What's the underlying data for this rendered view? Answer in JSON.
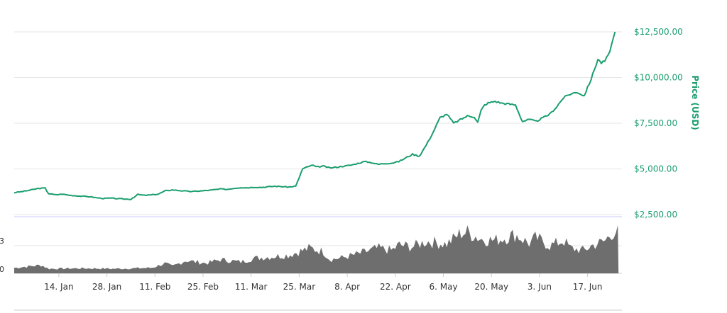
{
  "chart_data": {
    "type": "line",
    "ylabel": "Price (USD)",
    "y_axis_position": "right",
    "ylim": [
      2500,
      12500
    ],
    "y_ticks": [
      "$2,500.00",
      "$5,000.00",
      "$7,500.00",
      "$10,000.00",
      "$12,500.00"
    ],
    "y_tick_values": [
      2500,
      5000,
      7500,
      10000,
      12500
    ],
    "x_ticks": [
      "14. Jan",
      "28. Jan",
      "11. Feb",
      "25. Feb",
      "11. Mar",
      "25. Mar",
      "8. Apr",
      "22. Apr",
      "6. May",
      "20. May",
      "3. Jun",
      "17. Jun"
    ],
    "x_tick_days": [
      13,
      27,
      41,
      55,
      69,
      83,
      97,
      111,
      125,
      139,
      153,
      167
    ],
    "x_range_days": [
      0,
      177
    ],
    "grid": true,
    "line_color": "#1a9e6e",
    "volume_color": "#6e6e6e",
    "volume_ticks": [
      "0",
      "3"
    ],
    "series": [
      {
        "x_day": [
          0,
          3,
          5,
          7,
          9,
          10,
          12,
          14,
          16,
          18,
          20,
          22,
          24,
          26,
          28,
          30,
          32,
          34,
          36,
          38,
          40,
          42,
          44,
          46,
          48,
          50,
          52,
          54,
          55,
          56,
          58,
          60,
          62,
          64,
          66,
          68,
          70,
          72,
          74,
          76,
          78,
          80,
          82,
          84,
          86,
          87,
          88,
          90,
          92,
          94,
          96,
          98,
          100,
          102,
          104,
          106,
          108,
          110,
          112,
          114,
          116,
          118,
          120,
          122,
          124,
          126,
          128,
          130,
          132,
          134,
          135,
          136,
          137,
          138,
          139,
          140,
          142,
          144,
          146,
          148,
          150,
          152,
          154,
          156,
          158,
          160,
          162,
          164,
          166,
          168,
          170,
          171,
          172,
          173,
          174,
          175
        ],
        "values": [
          3700,
          3780,
          3850,
          3930,
          3950,
          3650,
          3580,
          3620,
          3560,
          3530,
          3500,
          3480,
          3420,
          3380,
          3400,
          3370,
          3350,
          3340,
          3600,
          3550,
          3580,
          3620,
          3800,
          3850,
          3820,
          3780,
          3760,
          3790,
          3800,
          3820,
          3850,
          3900,
          3880,
          3940,
          3980,
          3970,
          4000,
          3990,
          4020,
          4050,
          4030,
          4010,
          4050,
          5000,
          5150,
          5200,
          5100,
          5150,
          5050,
          5100,
          5150,
          5200,
          5300,
          5400,
          5350,
          5250,
          5300,
          5320,
          5400,
          5600,
          5800,
          5700,
          6300,
          7000,
          7800,
          8000,
          7500,
          7700,
          7900,
          7850,
          7550,
          8200,
          8500,
          8600,
          8650,
          8700,
          8600,
          8550,
          8500,
          7600,
          7700,
          7600,
          7800,
          8000,
          8400,
          8900,
          9100,
          9200,
          9000,
          9900,
          11000,
          10800,
          10900,
          11200,
          11800,
          12500
        ]
      }
    ],
    "volume": {
      "x_day": [
        0,
        8,
        10,
        20,
        30,
        40,
        44,
        46,
        50,
        56,
        60,
        66,
        70,
        80,
        86,
        90,
        92,
        96,
        100,
        106,
        110,
        112,
        116,
        120,
        126,
        130,
        132,
        136,
        140,
        144,
        146,
        150,
        152,
        156,
        160,
        162,
        166,
        168,
        172,
        174,
        176
      ],
      "values": [
        0.12,
        0.18,
        0.1,
        0.11,
        0.1,
        0.12,
        0.22,
        0.15,
        0.28,
        0.22,
        0.3,
        0.25,
        0.33,
        0.4,
        0.55,
        0.48,
        0.3,
        0.35,
        0.42,
        0.55,
        0.5,
        0.62,
        0.58,
        0.7,
        0.64,
        0.88,
        0.9,
        0.75,
        0.72,
        0.8,
        0.85,
        0.65,
        0.78,
        0.6,
        0.72,
        0.55,
        0.5,
        0.6,
        0.7,
        0.88,
        0.95
      ]
    }
  }
}
